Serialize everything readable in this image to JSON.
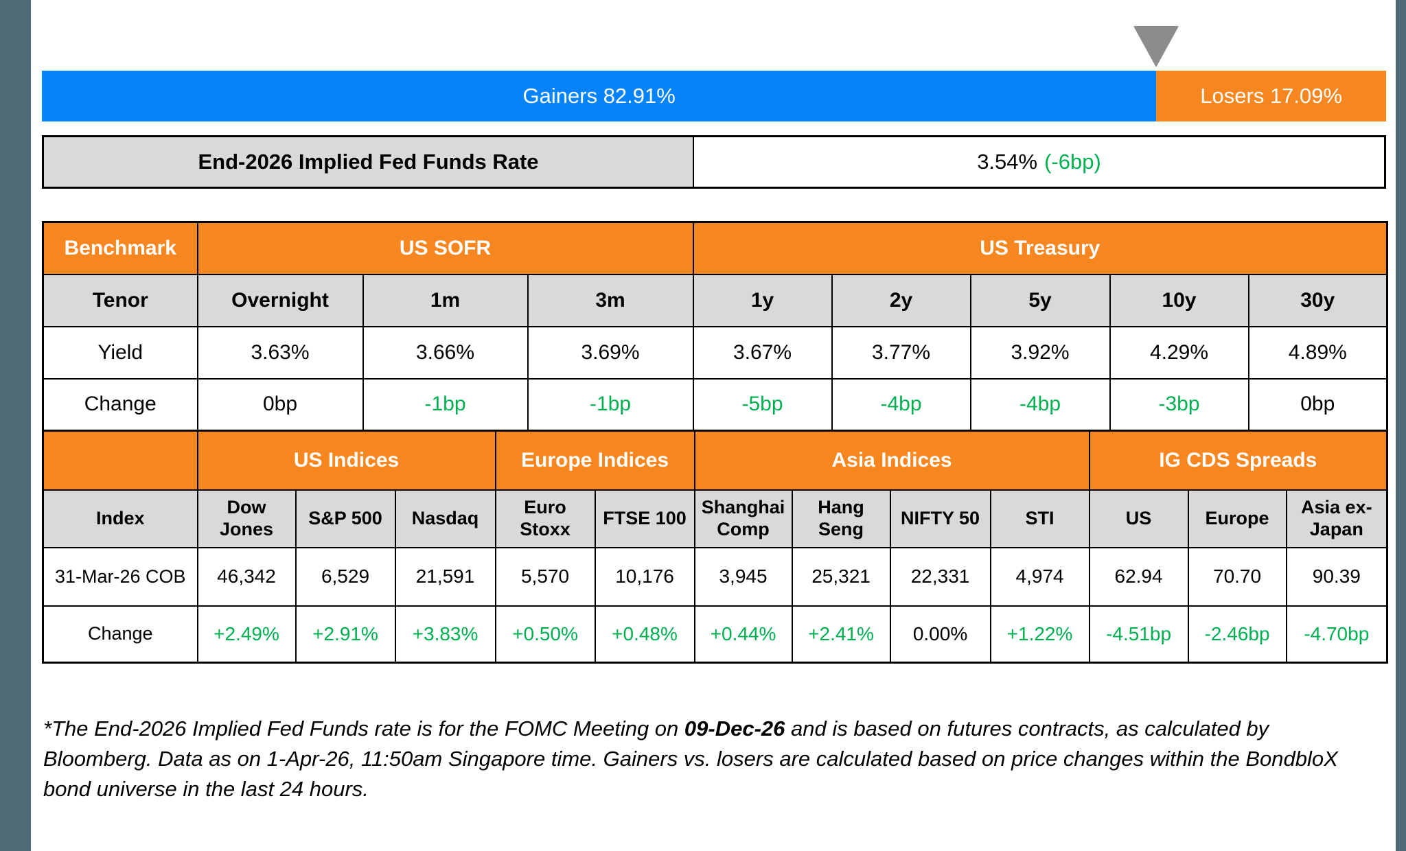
{
  "colors": {
    "blue": "#0583fb",
    "orange": "#f6861f",
    "green": "#00b050",
    "header_gray": "#d9d9d9",
    "frame_slate": "#4e6a77",
    "triangle_gray": "#8c8c8c",
    "border_black": "#000000"
  },
  "gainers_losers": {
    "gainers_label": "Gainers 82.91%",
    "losers_label": "Losers 17.09%",
    "gainers_pct": 82.91,
    "losers_pct": 17.09
  },
  "fed_funds": {
    "label": "End-2026 Implied Fed Funds Rate",
    "value": "3.54%",
    "change": "(-6bp)"
  },
  "benchmark_table": {
    "corner_label": "Benchmark",
    "group_sofr": "US SOFR",
    "group_treasury": "US Treasury",
    "tenor_label": "Tenor",
    "tenors": [
      "Overnight",
      "1m",
      "3m",
      "1y",
      "2y",
      "5y",
      "10y",
      "30y"
    ],
    "yield_label": "Yield",
    "yields": [
      "3.63%",
      "3.66%",
      "3.69%",
      "3.67%",
      "3.77%",
      "3.92%",
      "4.29%",
      "4.89%"
    ],
    "change_label": "Change",
    "changes": [
      {
        "t": "0bp",
        "c": "k"
      },
      {
        "t": "-1bp",
        "c": "g"
      },
      {
        "t": "-1bp",
        "c": "g"
      },
      {
        "t": "-5bp",
        "c": "g"
      },
      {
        "t": "-4bp",
        "c": "g"
      },
      {
        "t": "-4bp",
        "c": "g"
      },
      {
        "t": "-3bp",
        "c": "g"
      },
      {
        "t": "0bp",
        "c": "k"
      }
    ]
  },
  "indices_table": {
    "corner_label": "",
    "group_us": "US Indices",
    "group_europe": "Europe Indices",
    "group_asia": "Asia Indices",
    "group_cds": "IG CDS Spreads",
    "index_label": "Index",
    "columns": [
      "Dow Jones",
      "S&P 500",
      "Nasdaq",
      "Euro Stoxx",
      "FTSE 100",
      "Shanghai Comp",
      "Hang Seng",
      "NIFTY 50",
      "STI",
      "US",
      "Europe",
      "Asia ex-Japan"
    ],
    "date_label": "31-Mar-26 COB",
    "values": [
      "46,342",
      "6,529",
      "21,591",
      "5,570",
      "10,176",
      "3,945",
      "25,321",
      "22,331",
      "4,974",
      "62.94",
      "70.70",
      "90.39"
    ],
    "change_label": "Change",
    "changes": [
      {
        "t": "+2.49%",
        "c": "g"
      },
      {
        "t": "+2.91%",
        "c": "g"
      },
      {
        "t": "+3.83%",
        "c": "g"
      },
      {
        "t": "+0.50%",
        "c": "g"
      },
      {
        "t": "+0.48%",
        "c": "g"
      },
      {
        "t": "+0.44%",
        "c": "g"
      },
      {
        "t": "+2.41%",
        "c": "g"
      },
      {
        "t": "0.00%",
        "c": "k"
      },
      {
        "t": "+1.22%",
        "c": "g"
      },
      {
        "t": "-4.51bp",
        "c": "g"
      },
      {
        "t": "-2.46bp",
        "c": "g"
      },
      {
        "t": "-4.70bp",
        "c": "g"
      }
    ]
  },
  "footnote": {
    "part1": "*The End-2026 Implied Fed Funds rate is for the FOMC Meeting on ",
    "bold_date": "09-Dec-26",
    "part2": " and is based on futures contracts, as calculated by Bloomberg. Data as on 1-Apr-26, 11:50am Singapore time. Gainers vs. losers are calculated based on price changes within the BondbloX bond universe in the last 24 hours."
  },
  "chart_data": [
    {
      "type": "bar",
      "title": "Gainers vs Losers (BondbloX bond universe, last 24 hours)",
      "orientation": "horizontal-stacked",
      "unit": "%",
      "series": [
        {
          "name": "Gainers",
          "values": [
            82.91
          ]
        },
        {
          "name": "Losers",
          "values": [
            17.09
          ]
        }
      ],
      "legend_position": "inside-bar",
      "xlim": [
        0,
        100
      ],
      "colors": {
        "Gainers": "#0583fb",
        "Losers": "#f6861f"
      }
    },
    {
      "type": "table",
      "title": "Benchmark yields",
      "groups": [
        {
          "label": "US SOFR",
          "span": 3
        },
        {
          "label": "US Treasury",
          "span": 5
        }
      ],
      "columns": [
        "Overnight",
        "1m",
        "3m",
        "1y",
        "2y",
        "5y",
        "10y",
        "30y"
      ],
      "rows": [
        {
          "label": "Yield",
          "cells": [
            "3.63%",
            "3.66%",
            "3.69%",
            "3.67%",
            "3.77%",
            "3.92%",
            "4.29%",
            "4.89%"
          ]
        },
        {
          "label": "Change",
          "cells": [
            "0bp",
            "-1bp",
            "-1bp",
            "-5bp",
            "-4bp",
            "-4bp",
            "-3bp",
            "0bp"
          ]
        }
      ]
    },
    {
      "type": "table",
      "title": "Indices and IG CDS Spreads",
      "groups": [
        {
          "label": "US Indices",
          "span": 3
        },
        {
          "label": "Europe Indices",
          "span": 2
        },
        {
          "label": "Asia Indices",
          "span": 4
        },
        {
          "label": "IG CDS Spreads",
          "span": 3
        }
      ],
      "columns": [
        "Dow Jones",
        "S&P 500",
        "Nasdaq",
        "Euro Stoxx",
        "FTSE 100",
        "Shanghai Comp",
        "Hang Seng",
        "NIFTY 50",
        "STI",
        "US",
        "Europe",
        "Asia ex-Japan"
      ],
      "rows": [
        {
          "label": "31-Mar-26 COB",
          "cells": [
            46342,
            6529,
            21591,
            5570,
            10176,
            3945,
            25321,
            22331,
            4974,
            62.94,
            70.7,
            90.39
          ]
        },
        {
          "label": "Change",
          "cells": [
            "+2.49%",
            "+2.91%",
            "+3.83%",
            "+0.50%",
            "+0.48%",
            "+0.44%",
            "+2.41%",
            "0.00%",
            "+1.22%",
            "-4.51bp",
            "-2.46bp",
            "-4.70bp"
          ]
        }
      ]
    }
  ]
}
